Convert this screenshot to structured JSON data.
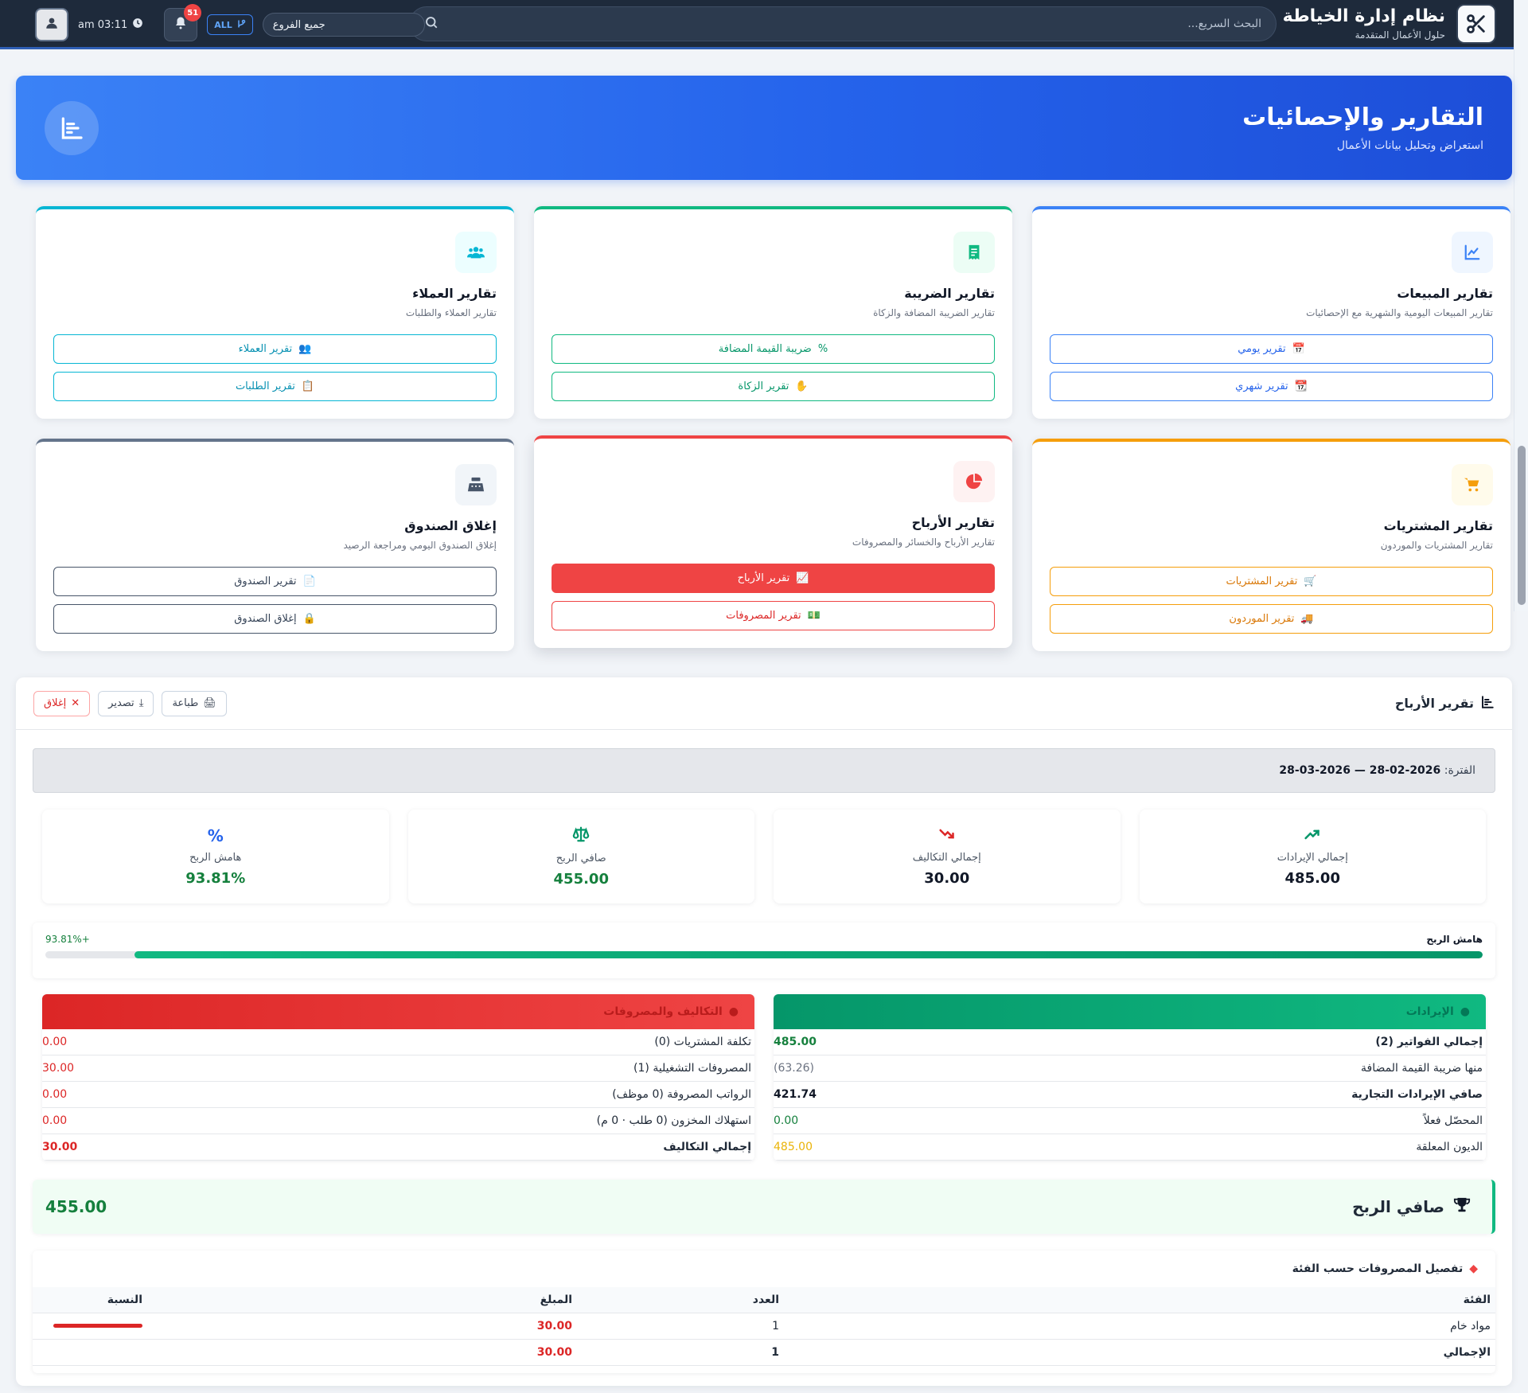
{
  "nav": {
    "brand_title": "نظام إدارة الخياطة",
    "brand_sub": "حلول الأعمال المتقدمة",
    "search_placeholder": "البحث السريع...",
    "branch": "جميع الفروع",
    "branch_chip": "ALL",
    "notifications": "51",
    "time": "am 03:11"
  },
  "hero": {
    "title": "التقارير والإحصائيات",
    "subtitle": "استعراض وتحليل بيانات الأعمال"
  },
  "cards": {
    "sales": {
      "title": "تقارير المبيعات",
      "desc": "تقارير المبيعات اليومية والشهرية مع الإحصائيات",
      "btn1": "تقرير يومي",
      "btn2": "تقرير شهري"
    },
    "tax": {
      "title": "تقارير الضريبة",
      "desc": "تقارير الضريبة المضافة والزكاة",
      "btn1": "ضريبة القيمة المضافة",
      "btn2": "تقرير الزكاة"
    },
    "customers": {
      "title": "تقارير العملاء",
      "desc": "تقارير العملاء والطلبات",
      "btn1": "تقرير العملاء",
      "btn2": "تقرير الطلبات"
    },
    "purchases": {
      "title": "تقارير المشتريات",
      "desc": "تقارير المشتريات والموردون",
      "btn1": "تقرير المشتريات",
      "btn2": "تقرير الموردون"
    },
    "profits": {
      "title": "تقارير الأرباح",
      "desc": "تقارير الأرباح والخسائر والمصروفات",
      "btn1": "تقرير الأرباح",
      "btn2": "تقرير المصروفات"
    },
    "cashbox": {
      "title": "إغلاق الصندوق",
      "desc": "إغلاق الصندوق اليومي ومراجعة الرصيد",
      "btn1": "تقرير الصندوق",
      "btn2": "إغلاق الصندوق"
    }
  },
  "report": {
    "title": "تقرير الأرباح",
    "print": "طباعة",
    "export": "تصدير",
    "close": "إغلاق",
    "period_label": "الفترة:",
    "period_value": "28-02-2026 — 28-03-2026",
    "kpis": {
      "revenue_label": "إجمالي الإيرادات",
      "revenue": "485.00",
      "costs_label": "إجمالي التكاليف",
      "costs": "30.00",
      "net_label": "صافي الربح",
      "net": "455.00",
      "margin_label": "هامش الربح",
      "margin": "93.81%"
    },
    "margin_bar_label": "هامش الربح",
    "margin_bar_text": "93.81%+",
    "margin_fraction": 0.9381,
    "revenues_header": "الإيرادات",
    "revenues": [
      {
        "label": "إجمالي الفواتير (2)",
        "value": "485.00",
        "style": "green-bold"
      },
      {
        "label": "منها ضريبة القيمة المضافة",
        "value": "(63.26)",
        "style": "muted"
      },
      {
        "label": "صافي الإيرادات التجارية",
        "value": "421.74",
        "style": "bold"
      },
      {
        "label": "المحصّل فعلاً",
        "value": "0.00",
        "style": "green"
      },
      {
        "label": "الديون المعلقة",
        "value": "485.00",
        "style": "amber"
      }
    ],
    "costs_header": "التكاليف والمصروفات",
    "costs": [
      {
        "label": "تكلفة المشتريات (0)",
        "value": "0.00",
        "style": "red"
      },
      {
        "label": "المصروفات التشغيلية (1)",
        "value": "30.00",
        "style": "red"
      },
      {
        "label": "الرواتب المصروفة (0 موظف)",
        "value": "0.00",
        "style": "red"
      },
      {
        "label": "استهلاك المخزون (0 طلب · 0 م)",
        "value": "0.00",
        "style": "red"
      },
      {
        "label": "إجمالي التكاليف",
        "value": "30.00",
        "style": "red-bold"
      }
    ],
    "net_profit_label": "صافي الربح",
    "net_profit_value": "455.00",
    "expenses": {
      "title": "تفصيل المصروفات حسب الفئة",
      "headers": {
        "category": "الفئة",
        "count": "العدد",
        "amount": "المبلغ",
        "percent": "النسبة"
      },
      "rows": [
        {
          "category": "مواد خام",
          "count": "1",
          "amount": "30.00",
          "percent": 1.0
        }
      ],
      "total": {
        "category": "الإجمالي",
        "count": "1",
        "amount": "30.00"
      }
    }
  },
  "colors": {
    "sales": "#3b82f6",
    "tax": "#10b981",
    "customers": "#06b6d4",
    "purchases": "#f59e0b",
    "profits": "#ef4444",
    "cashbox": "#64748b"
  }
}
